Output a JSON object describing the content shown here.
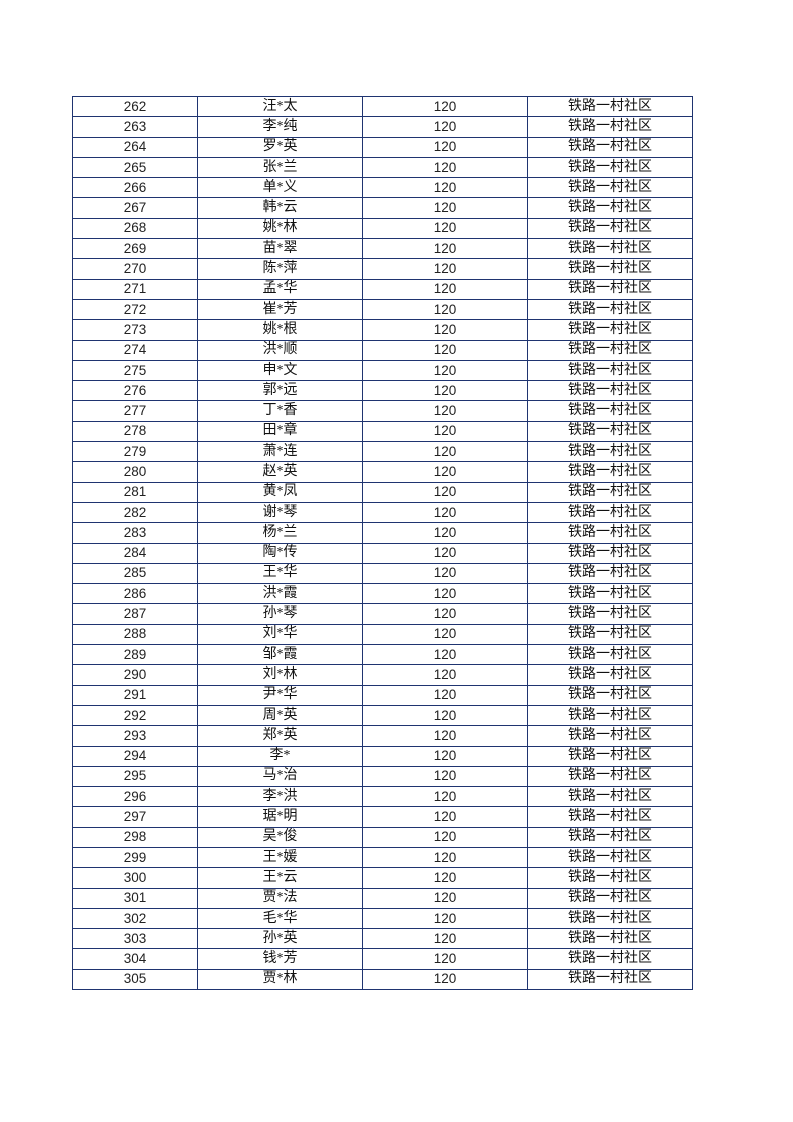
{
  "table": {
    "rows": [
      [
        "262",
        "汪*太",
        "120",
        "铁路一村社区"
      ],
      [
        "263",
        "李*纯",
        "120",
        "铁路一村社区"
      ],
      [
        "264",
        "罗*英",
        "120",
        "铁路一村社区"
      ],
      [
        "265",
        "张*兰",
        "120",
        "铁路一村社区"
      ],
      [
        "266",
        "单*义",
        "120",
        "铁路一村社区"
      ],
      [
        "267",
        "韩*云",
        "120",
        "铁路一村社区"
      ],
      [
        "268",
        "姚*林",
        "120",
        "铁路一村社区"
      ],
      [
        "269",
        "苗*翠",
        "120",
        "铁路一村社区"
      ],
      [
        "270",
        "陈*萍",
        "120",
        "铁路一村社区"
      ],
      [
        "271",
        "孟*华",
        "120",
        "铁路一村社区"
      ],
      [
        "272",
        "崔*芳",
        "120",
        "铁路一村社区"
      ],
      [
        "273",
        "姚*根",
        "120",
        "铁路一村社区"
      ],
      [
        "274",
        "洪*顺",
        "120",
        "铁路一村社区"
      ],
      [
        "275",
        "申*文",
        "120",
        "铁路一村社区"
      ],
      [
        "276",
        "郭*远",
        "120",
        "铁路一村社区"
      ],
      [
        "277",
        "丁*香",
        "120",
        "铁路一村社区"
      ],
      [
        "278",
        "田*章",
        "120",
        "铁路一村社区"
      ],
      [
        "279",
        "萧*连",
        "120",
        "铁路一村社区"
      ],
      [
        "280",
        "赵*英",
        "120",
        "铁路一村社区"
      ],
      [
        "281",
        "黄*凤",
        "120",
        "铁路一村社区"
      ],
      [
        "282",
        "谢*琴",
        "120",
        "铁路一村社区"
      ],
      [
        "283",
        "杨*兰",
        "120",
        "铁路一村社区"
      ],
      [
        "284",
        "陶*传",
        "120",
        "铁路一村社区"
      ],
      [
        "285",
        "王*华",
        "120",
        "铁路一村社区"
      ],
      [
        "286",
        "洪*霞",
        "120",
        "铁路一村社区"
      ],
      [
        "287",
        "孙*琴",
        "120",
        "铁路一村社区"
      ],
      [
        "288",
        "刘*华",
        "120",
        "铁路一村社区"
      ],
      [
        "289",
        "邹*霞",
        "120",
        "铁路一村社区"
      ],
      [
        "290",
        "刘*林",
        "120",
        "铁路一村社区"
      ],
      [
        "291",
        "尹*华",
        "120",
        "铁路一村社区"
      ],
      [
        "292",
        "周*英",
        "120",
        "铁路一村社区"
      ],
      [
        "293",
        "郑*英",
        "120",
        "铁路一村社区"
      ],
      [
        "294",
        "李*",
        "120",
        "铁路一村社区"
      ],
      [
        "295",
        "马*治",
        "120",
        "铁路一村社区"
      ],
      [
        "296",
        "李*洪",
        "120",
        "铁路一村社区"
      ],
      [
        "297",
        "琚*明",
        "120",
        "铁路一村社区"
      ],
      [
        "298",
        "吴*俊",
        "120",
        "铁路一村社区"
      ],
      [
        "299",
        "王*媛",
        "120",
        "铁路一村社区"
      ],
      [
        "300",
        "王*云",
        "120",
        "铁路一村社区"
      ],
      [
        "301",
        "贾*法",
        "120",
        "铁路一村社区"
      ],
      [
        "302",
        "毛*华",
        "120",
        "铁路一村社区"
      ],
      [
        "303",
        "孙*英",
        "120",
        "铁路一村社区"
      ],
      [
        "304",
        "钱*芳",
        "120",
        "铁路一村社区"
      ],
      [
        "305",
        "贾*林",
        "120",
        "铁路一村社区"
      ]
    ]
  }
}
